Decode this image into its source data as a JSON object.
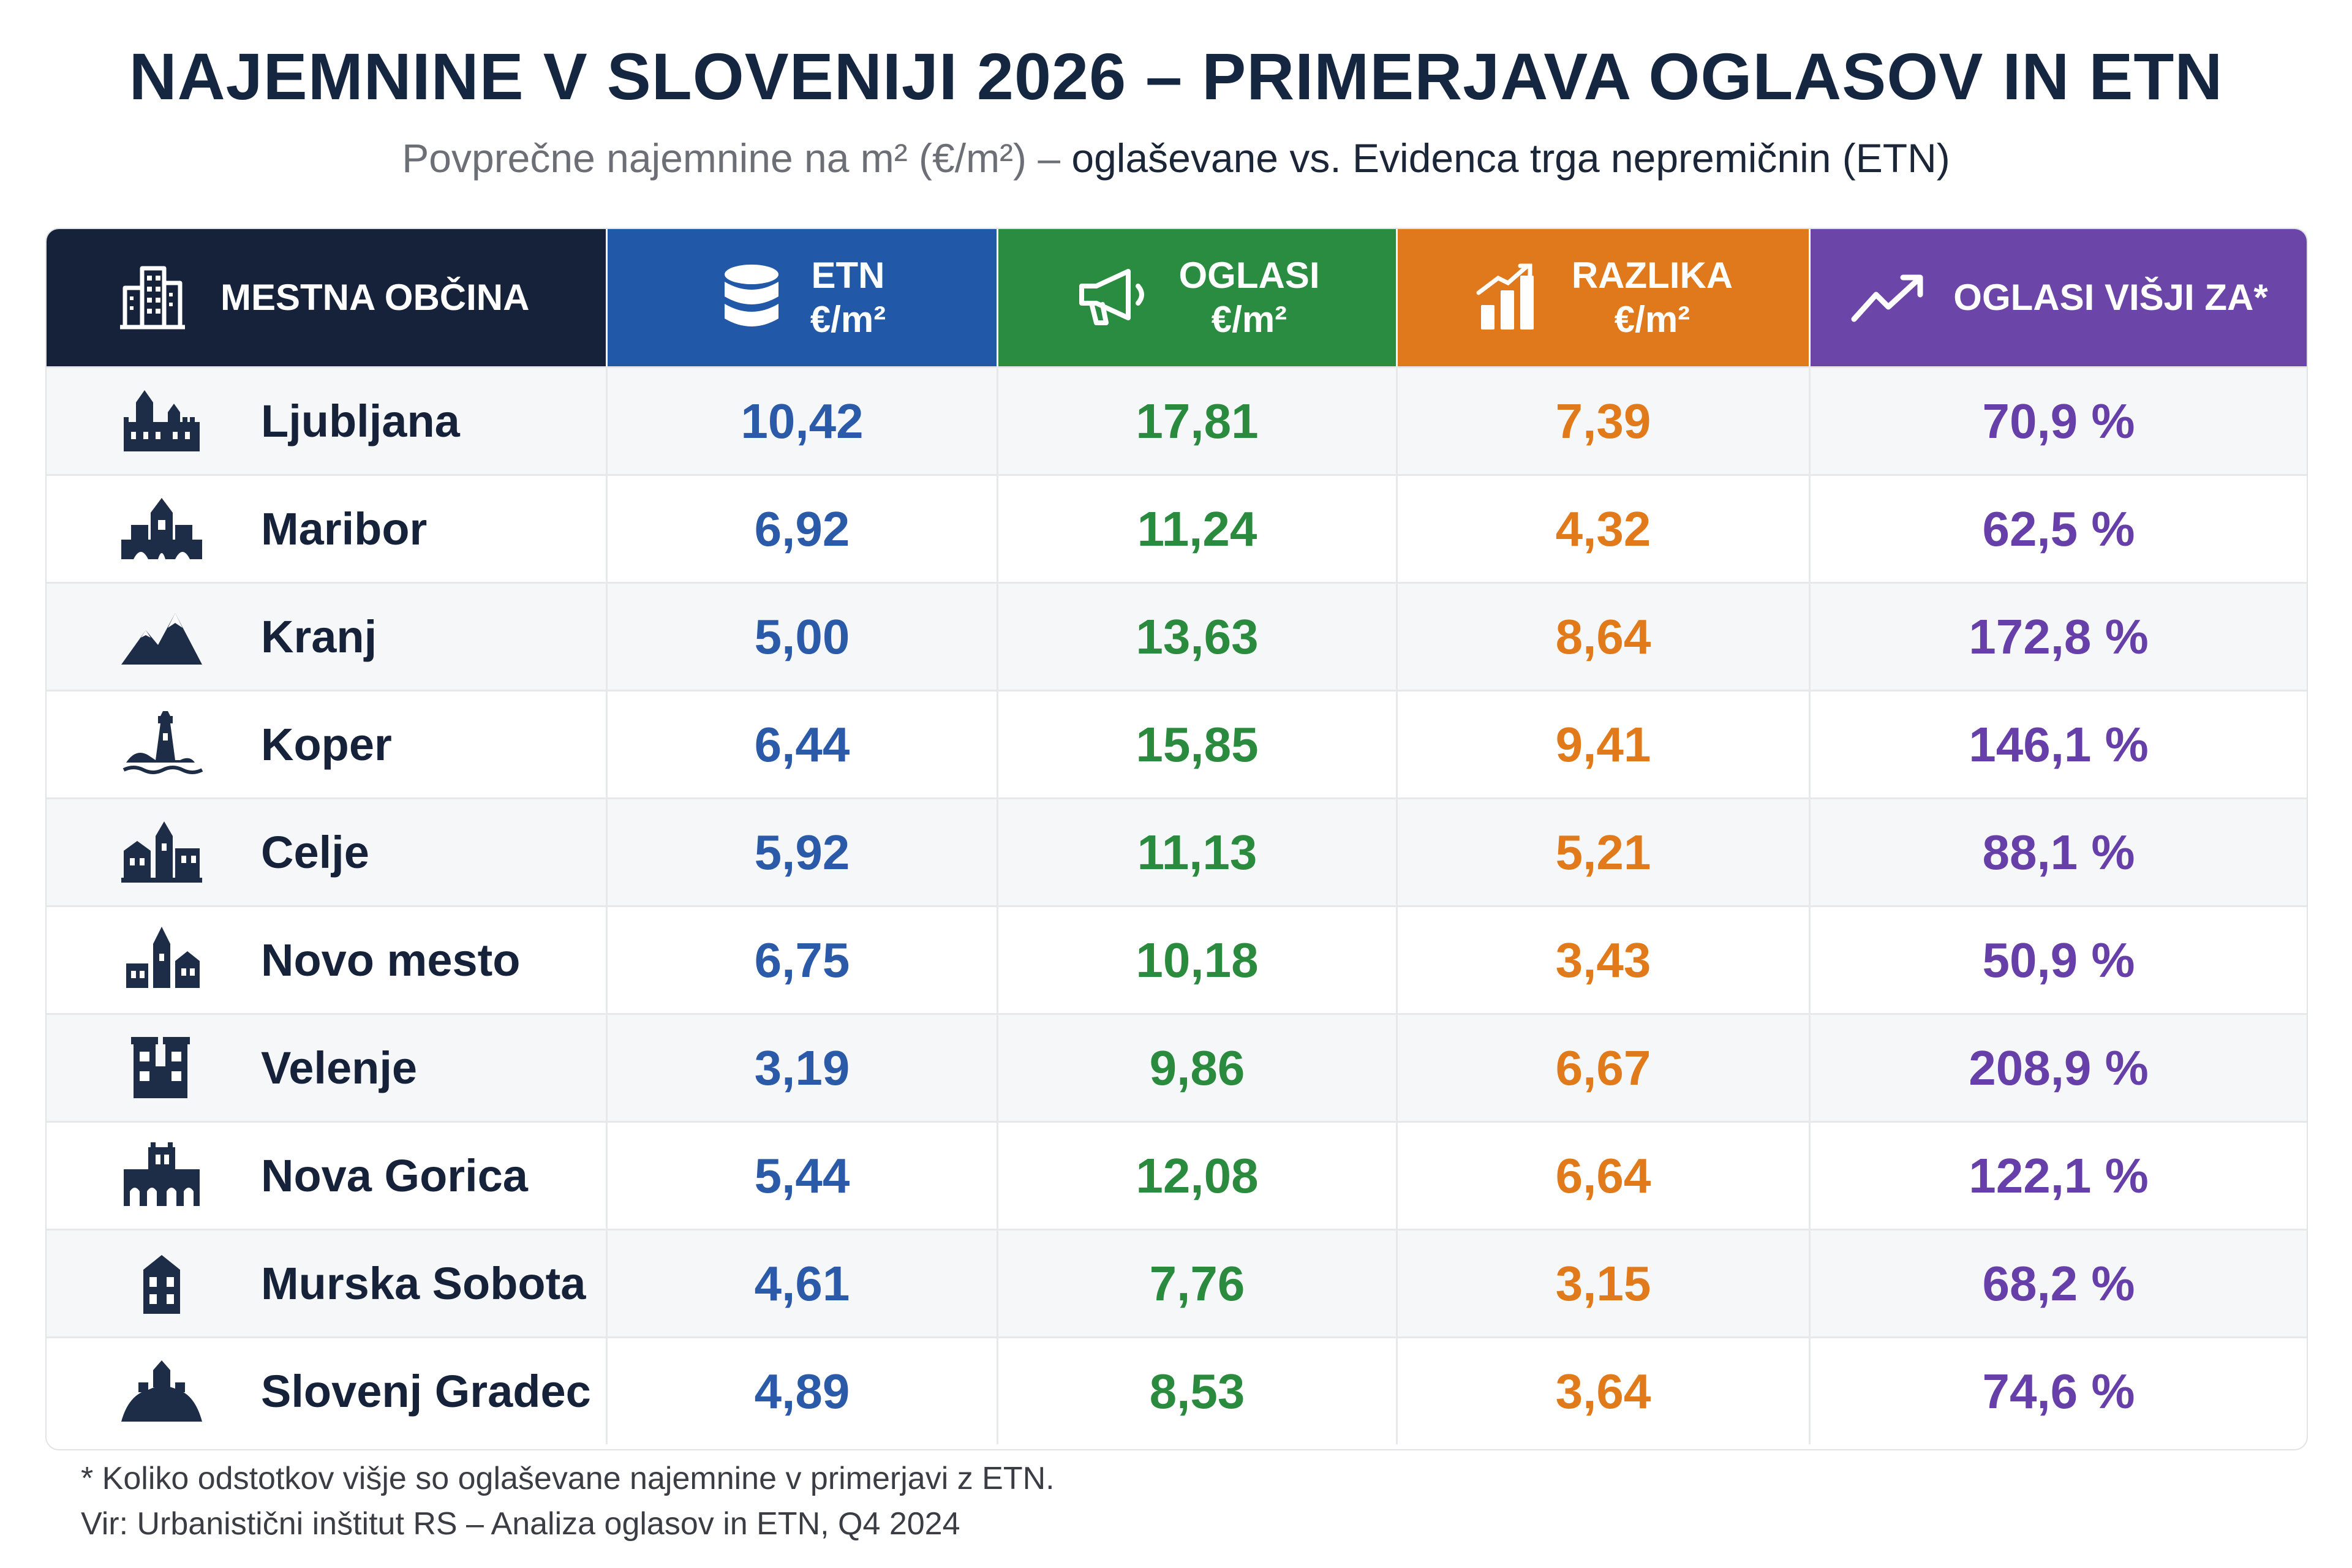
{
  "title": "NAJEMNINE V SLOVENIJI 2026 – PRIMERJAVA OGLASOV IN ETN",
  "subtitle_prefix": "Povprečne najemnine na m² (€/m²) – ",
  "subtitle_strong": "oglaševane vs. Evidenca trga nepremičnin (ETN)",
  "colors": {
    "header_dark": "#15223a",
    "etn": "#2258a8",
    "oglasi": "#2a8c41",
    "razlika": "#e0781c",
    "visji": "#6b45a8"
  },
  "chart_data": {
    "type": "table",
    "columns": [
      {
        "line1": "MESTNA OBČINA",
        "line2": "",
        "icon": "buildings-icon"
      },
      {
        "line1": "ETN",
        "line2": "€/m²",
        "icon": "database-icon"
      },
      {
        "line1": "OGLASI",
        "line2": "€/m²",
        "icon": "megaphone-icon"
      },
      {
        "line1": "RAZLIKA",
        "line2": "€/m²",
        "icon": "bar-chart-icon"
      },
      {
        "line1": "OGLASI VIŠJI ZA*",
        "line2": "",
        "icon": "trend-up-icon"
      }
    ],
    "rows": [
      {
        "city": "Ljubljana",
        "icon": "castle-icon",
        "etn": "10,42",
        "oglasi": "17,81",
        "razlika": "7,39",
        "visji": "70,9 %"
      },
      {
        "city": "Maribor",
        "icon": "bridge-town-icon",
        "etn": "6,92",
        "oglasi": "11,24",
        "razlika": "4,32",
        "visji": "62,5 %"
      },
      {
        "city": "Kranj",
        "icon": "mountains-icon",
        "etn": "5,00",
        "oglasi": "13,63",
        "razlika": "8,64",
        "visji": "172,8 %"
      },
      {
        "city": "Koper",
        "icon": "lighthouse-icon",
        "etn": "6,44",
        "oglasi": "15,85",
        "razlika": "9,41",
        "visji": "146,1 %"
      },
      {
        "city": "Celje",
        "icon": "old-town-icon",
        "etn": "5,92",
        "oglasi": "11,13",
        "razlika": "5,21",
        "visji": "88,1 %"
      },
      {
        "city": "Novo mesto",
        "icon": "church-icon",
        "etn": "6,75",
        "oglasi": "10,18",
        "razlika": "3,43",
        "visji": "50,9 %"
      },
      {
        "city": "Velenje",
        "icon": "twin-towers-icon",
        "etn": "3,19",
        "oglasi": "9,86",
        "razlika": "6,67",
        "visji": "208,9 %"
      },
      {
        "city": "Nova Gorica",
        "icon": "arcade-building-icon",
        "etn": "5,44",
        "oglasi": "12,08",
        "razlika": "6,64",
        "visji": "122,1 %"
      },
      {
        "city": "Murska Sobota",
        "icon": "manor-icon",
        "etn": "4,61",
        "oglasi": "7,76",
        "razlika": "3,15",
        "visji": "68,2 %"
      },
      {
        "city": "Slovenj Gradec",
        "icon": "hill-castle-icon",
        "etn": "4,89",
        "oglasi": "8,53",
        "razlika": "3,64",
        "visji": "74,6 %"
      }
    ]
  },
  "footnote": "* Koliko odstotkov višje so oglaševane najemnine v primerjavi z ETN.",
  "source": "Vir: Urbanistični inštitut RS – Analiza oglasov in ETN, Q4 2024"
}
